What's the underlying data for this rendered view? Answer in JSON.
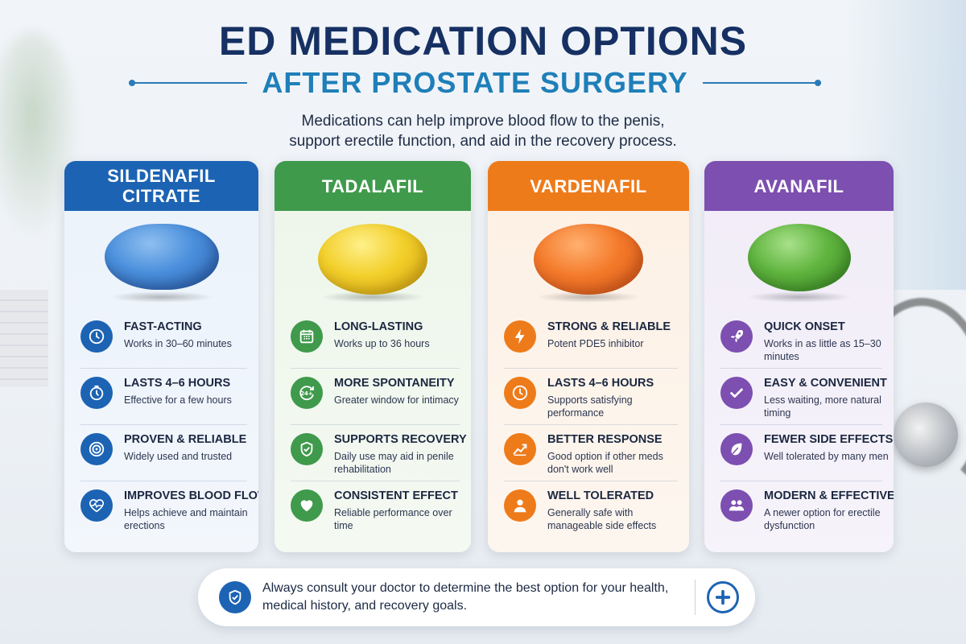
{
  "header": {
    "title": "ED MEDICATION OPTIONS",
    "subtitle": "AFTER PROSTATE SURGERY",
    "intro_line1": "Medications can help improve blood flow to the penis,",
    "intro_line2": "support erectile function, and aid in the recovery process."
  },
  "colors": {
    "blue": "#1c63b3",
    "green": "#3f9a4b",
    "orange": "#ee7b1a",
    "purple": "#7c4fb0",
    "title": "#163063",
    "subtitle": "#1f7fb8"
  },
  "cards": [
    {
      "name": "SILDENAFIL CITRATE",
      "name_line1": "SILDENAFIL",
      "name_line2": "CITRATE",
      "features": [
        {
          "icon": "clock-icon",
          "title": "FAST-ACTING",
          "desc": "Works in 30–60 minutes"
        },
        {
          "icon": "stopwatch-icon",
          "title": "LASTS 4–6 HOURS",
          "desc": "Effective for a few hours"
        },
        {
          "icon": "target-icon",
          "title": "PROVEN & RELIABLE",
          "desc": "Widely used and trusted"
        },
        {
          "icon": "heartbeat-icon",
          "title": "IMPROVES BLOOD FLOW",
          "desc": "Helps achieve and maintain erections"
        }
      ]
    },
    {
      "name": "TADALAFIL",
      "features": [
        {
          "icon": "calendar-icon",
          "title": "LONG-LASTING",
          "desc": "Works up to 36 hours"
        },
        {
          "icon": "24-hours-icon",
          "title": "MORE SPONTANEITY",
          "desc": "Greater window for intimacy"
        },
        {
          "icon": "shield-check-icon",
          "title": "SUPPORTS RECOVERY",
          "desc": "Daily use may aid in penile rehabilitation"
        },
        {
          "icon": "heart-icon",
          "title": "CONSISTENT EFFECT",
          "desc": "Reliable performance over time"
        }
      ]
    },
    {
      "name": "VARDENAFIL",
      "features": [
        {
          "icon": "lightning-icon",
          "title": "STRONG & RELIABLE",
          "desc": "Potent PDE5 inhibitor"
        },
        {
          "icon": "clock-icon",
          "title": "LASTS 4–6 HOURS",
          "desc": "Supports satisfying performance"
        },
        {
          "icon": "trend-up-icon",
          "title": "BETTER RESPONSE",
          "desc": "Good option if other meds don't work well"
        },
        {
          "icon": "person-icon",
          "title": "WELL TOLERATED",
          "desc": "Generally safe with manageable side effects"
        }
      ]
    },
    {
      "name": "AVANAFIL",
      "features": [
        {
          "icon": "rocket-icon",
          "title": "QUICK ONSET",
          "desc": "Works in as little as 15–30 minutes"
        },
        {
          "icon": "checkmark-icon",
          "title": "EASY & CONVENIENT",
          "desc": "Less waiting, more natural timing"
        },
        {
          "icon": "leaf-icon",
          "title": "FEWER SIDE EFFECTS",
          "desc": "Well tolerated by many men"
        },
        {
          "icon": "people-icon",
          "title": "MODERN & EFFECTIVE",
          "desc": "A newer option for erectile dysfunction"
        }
      ]
    }
  ],
  "footer": {
    "consult_line1": "Always consult your doctor to determine the best option for your health,",
    "consult_line2": "medical history, and recovery goals.",
    "shield_icon": "shield-check-icon",
    "plus_icon": "medical-plus-icon"
  }
}
